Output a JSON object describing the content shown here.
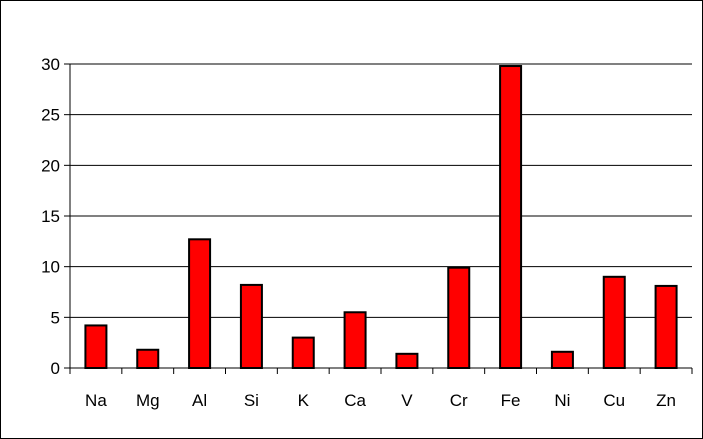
{
  "chart_data": {
    "type": "bar",
    "title": "",
    "xlabel": "",
    "ylabel": "",
    "categories": [
      "Na",
      "Mg",
      "Al",
      "Si",
      "K",
      "Ca",
      "V",
      "Cr",
      "Fe",
      "Ni",
      "Cu",
      "Zn"
    ],
    "values": [
      4.2,
      1.8,
      12.7,
      8.2,
      3.0,
      5.5,
      1.4,
      9.9,
      29.8,
      1.6,
      9.0,
      8.1
    ],
    "ylim": [
      0,
      30
    ],
    "yticks": [
      "0",
      "5",
      "10",
      "15",
      "20",
      "25",
      "30"
    ],
    "grid": true,
    "legend": "none",
    "colors": {
      "bar": "#ff0000",
      "bar_outline": "#000000",
      "grid": "#000000"
    }
  }
}
